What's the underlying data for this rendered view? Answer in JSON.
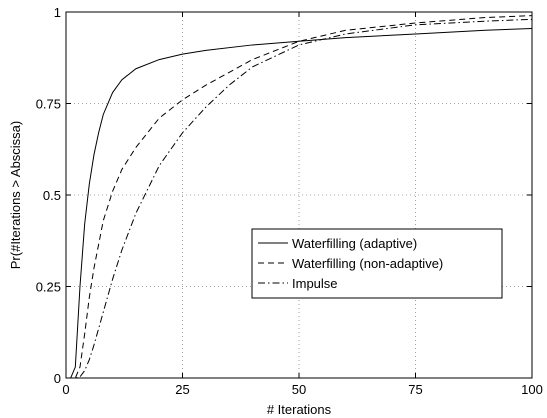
{
  "chart_data": {
    "type": "line",
    "title": "",
    "xlabel": "# Iterations",
    "ylabel": "Pr(#Iterations > Abscissa)",
    "xlim": [
      0,
      100
    ],
    "ylim": [
      0,
      1
    ],
    "grid": true,
    "legend_position": "center-right",
    "x_ticks": [
      0,
      25,
      50,
      75,
      100
    ],
    "x_tick_labels": [
      "0",
      "25",
      "50",
      "75",
      "100"
    ],
    "y_ticks": [
      0,
      0.25,
      0.5,
      0.75,
      1
    ],
    "y_tick_labels": [
      "0",
      "0.25",
      "0.5",
      "0.75",
      "1"
    ],
    "series": [
      {
        "name": "Waterfilling (adaptive)",
        "style": "solid",
        "x": [
          0,
          1,
          2,
          3,
          4,
          5,
          6,
          7,
          8,
          10,
          12,
          15,
          20,
          25,
          30,
          40,
          50,
          60,
          75,
          90,
          100
        ],
        "y": [
          0,
          0,
          0.03,
          0.25,
          0.42,
          0.53,
          0.61,
          0.67,
          0.72,
          0.78,
          0.815,
          0.845,
          0.87,
          0.885,
          0.895,
          0.91,
          0.92,
          0.93,
          0.94,
          0.95,
          0.955
        ]
      },
      {
        "name": "Waterfilling (non-adaptive)",
        "style": "dashed",
        "x": [
          0,
          1,
          2,
          3,
          4,
          5,
          6,
          8,
          10,
          12,
          15,
          20,
          25,
          30,
          40,
          50,
          60,
          75,
          90,
          100
        ],
        "y": [
          0,
          0,
          0,
          0.03,
          0.12,
          0.22,
          0.3,
          0.43,
          0.51,
          0.57,
          0.63,
          0.71,
          0.76,
          0.8,
          0.87,
          0.92,
          0.95,
          0.97,
          0.985,
          0.99
        ]
      },
      {
        "name": "Impulse",
        "style": "dashdot",
        "x": [
          0,
          2,
          3,
          4,
          5,
          6,
          8,
          10,
          12,
          15,
          20,
          25,
          30,
          35,
          40,
          50,
          60,
          75,
          90,
          100
        ],
        "y": [
          0,
          0,
          0.003,
          0.02,
          0.05,
          0.09,
          0.18,
          0.27,
          0.35,
          0.45,
          0.58,
          0.67,
          0.74,
          0.8,
          0.85,
          0.91,
          0.94,
          0.965,
          0.975,
          0.98
        ]
      }
    ]
  }
}
